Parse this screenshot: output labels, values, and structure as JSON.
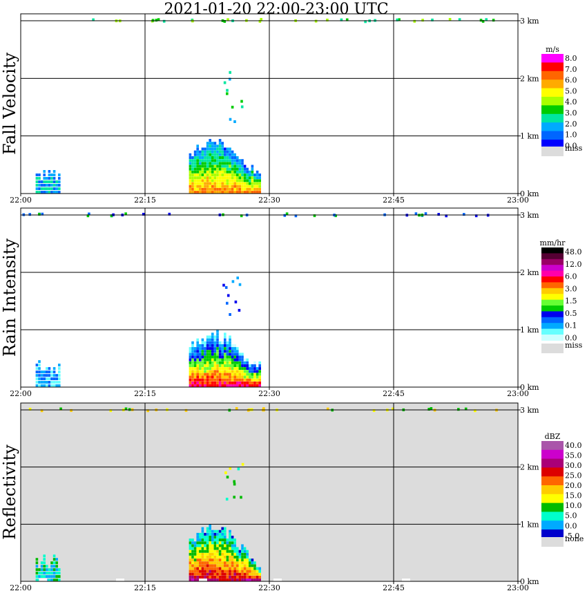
{
  "title": "2021-01-20  22:00-23:00 UTC",
  "chart_data": [
    {
      "type": "heatmap",
      "title": "Fall Velocity",
      "ylabel": "Fall Velocity",
      "x_ticks": [
        "22:00",
        "22:15",
        "22:30",
        "22:45",
        "23:00"
      ],
      "y_ticks": [
        "0 km",
        "1 km",
        "2 km",
        "3 km"
      ],
      "xlim": [
        0,
        60
      ],
      "ylim": [
        0,
        3
      ],
      "colorbar": {
        "unit": "m/s",
        "labels": [
          "8.0",
          "7.0",
          "6.0",
          "5.0",
          "4.0",
          "3.0",
          "2.0",
          "1.0",
          "0.0"
        ],
        "colors": [
          "#ff00ff",
          "#ff0000",
          "#ff6600",
          "#ffaa00",
          "#ffff00",
          "#aaff00",
          "#00cc00",
          "#00e6a0",
          "#00aaff",
          "#0066ff",
          "#0000ff"
        ],
        "missing_label": "miss"
      }
    },
    {
      "type": "heatmap",
      "title": "Rain Intensity",
      "ylabel": "Rain Intensity",
      "x_ticks": [
        "22:00",
        "22:15",
        "22:30",
        "22:45",
        "23:00"
      ],
      "y_ticks": [
        "0 km",
        "1 km",
        "2 km",
        "3 km"
      ],
      "xlim": [
        0,
        60
      ],
      "ylim": [
        0,
        3
      ],
      "colorbar": {
        "unit": "mm/hr",
        "labels": [
          "48.0",
          "12.0",
          "6.0",
          "3.0",
          "1.5",
          "0.5",
          "0.1",
          "0.0"
        ],
        "colors": [
          "#000000",
          "#550033",
          "#990066",
          "#cc00cc",
          "#ff00aa",
          "#ff0000",
          "#ff6600",
          "#ffcc00",
          "#ffff00",
          "#66ff33",
          "#00cc00",
          "#0000ee",
          "#0066ff",
          "#00aaff",
          "#66ffff",
          "#ccffff"
        ],
        "missing_label": "miss"
      }
    },
    {
      "type": "heatmap",
      "title": "Reflectivity",
      "ylabel": "Reflectivity",
      "x_ticks": [
        "22:00",
        "22:15",
        "22:30",
        "22:45",
        "23:00"
      ],
      "y_ticks": [
        "0 km",
        "1 km",
        "2 km",
        "3 km"
      ],
      "xlim": [
        0,
        60
      ],
      "ylim": [
        0,
        3
      ],
      "colorbar": {
        "unit": "dBZ",
        "labels": [
          "40.0",
          "35.0",
          "30.0",
          "25.0",
          "20.0",
          "15.0",
          "10.0",
          "5.0",
          "0.0",
          "-5.0"
        ],
        "colors": [
          "#aa55aa",
          "#cc00cc",
          "#aa0077",
          "#dd0000",
          "#ff6600",
          "#ffcc00",
          "#ffff00",
          "#00bb00",
          "#00ffcc",
          "#00aaff",
          "#0000cc"
        ],
        "missing_label": "none"
      }
    }
  ]
}
